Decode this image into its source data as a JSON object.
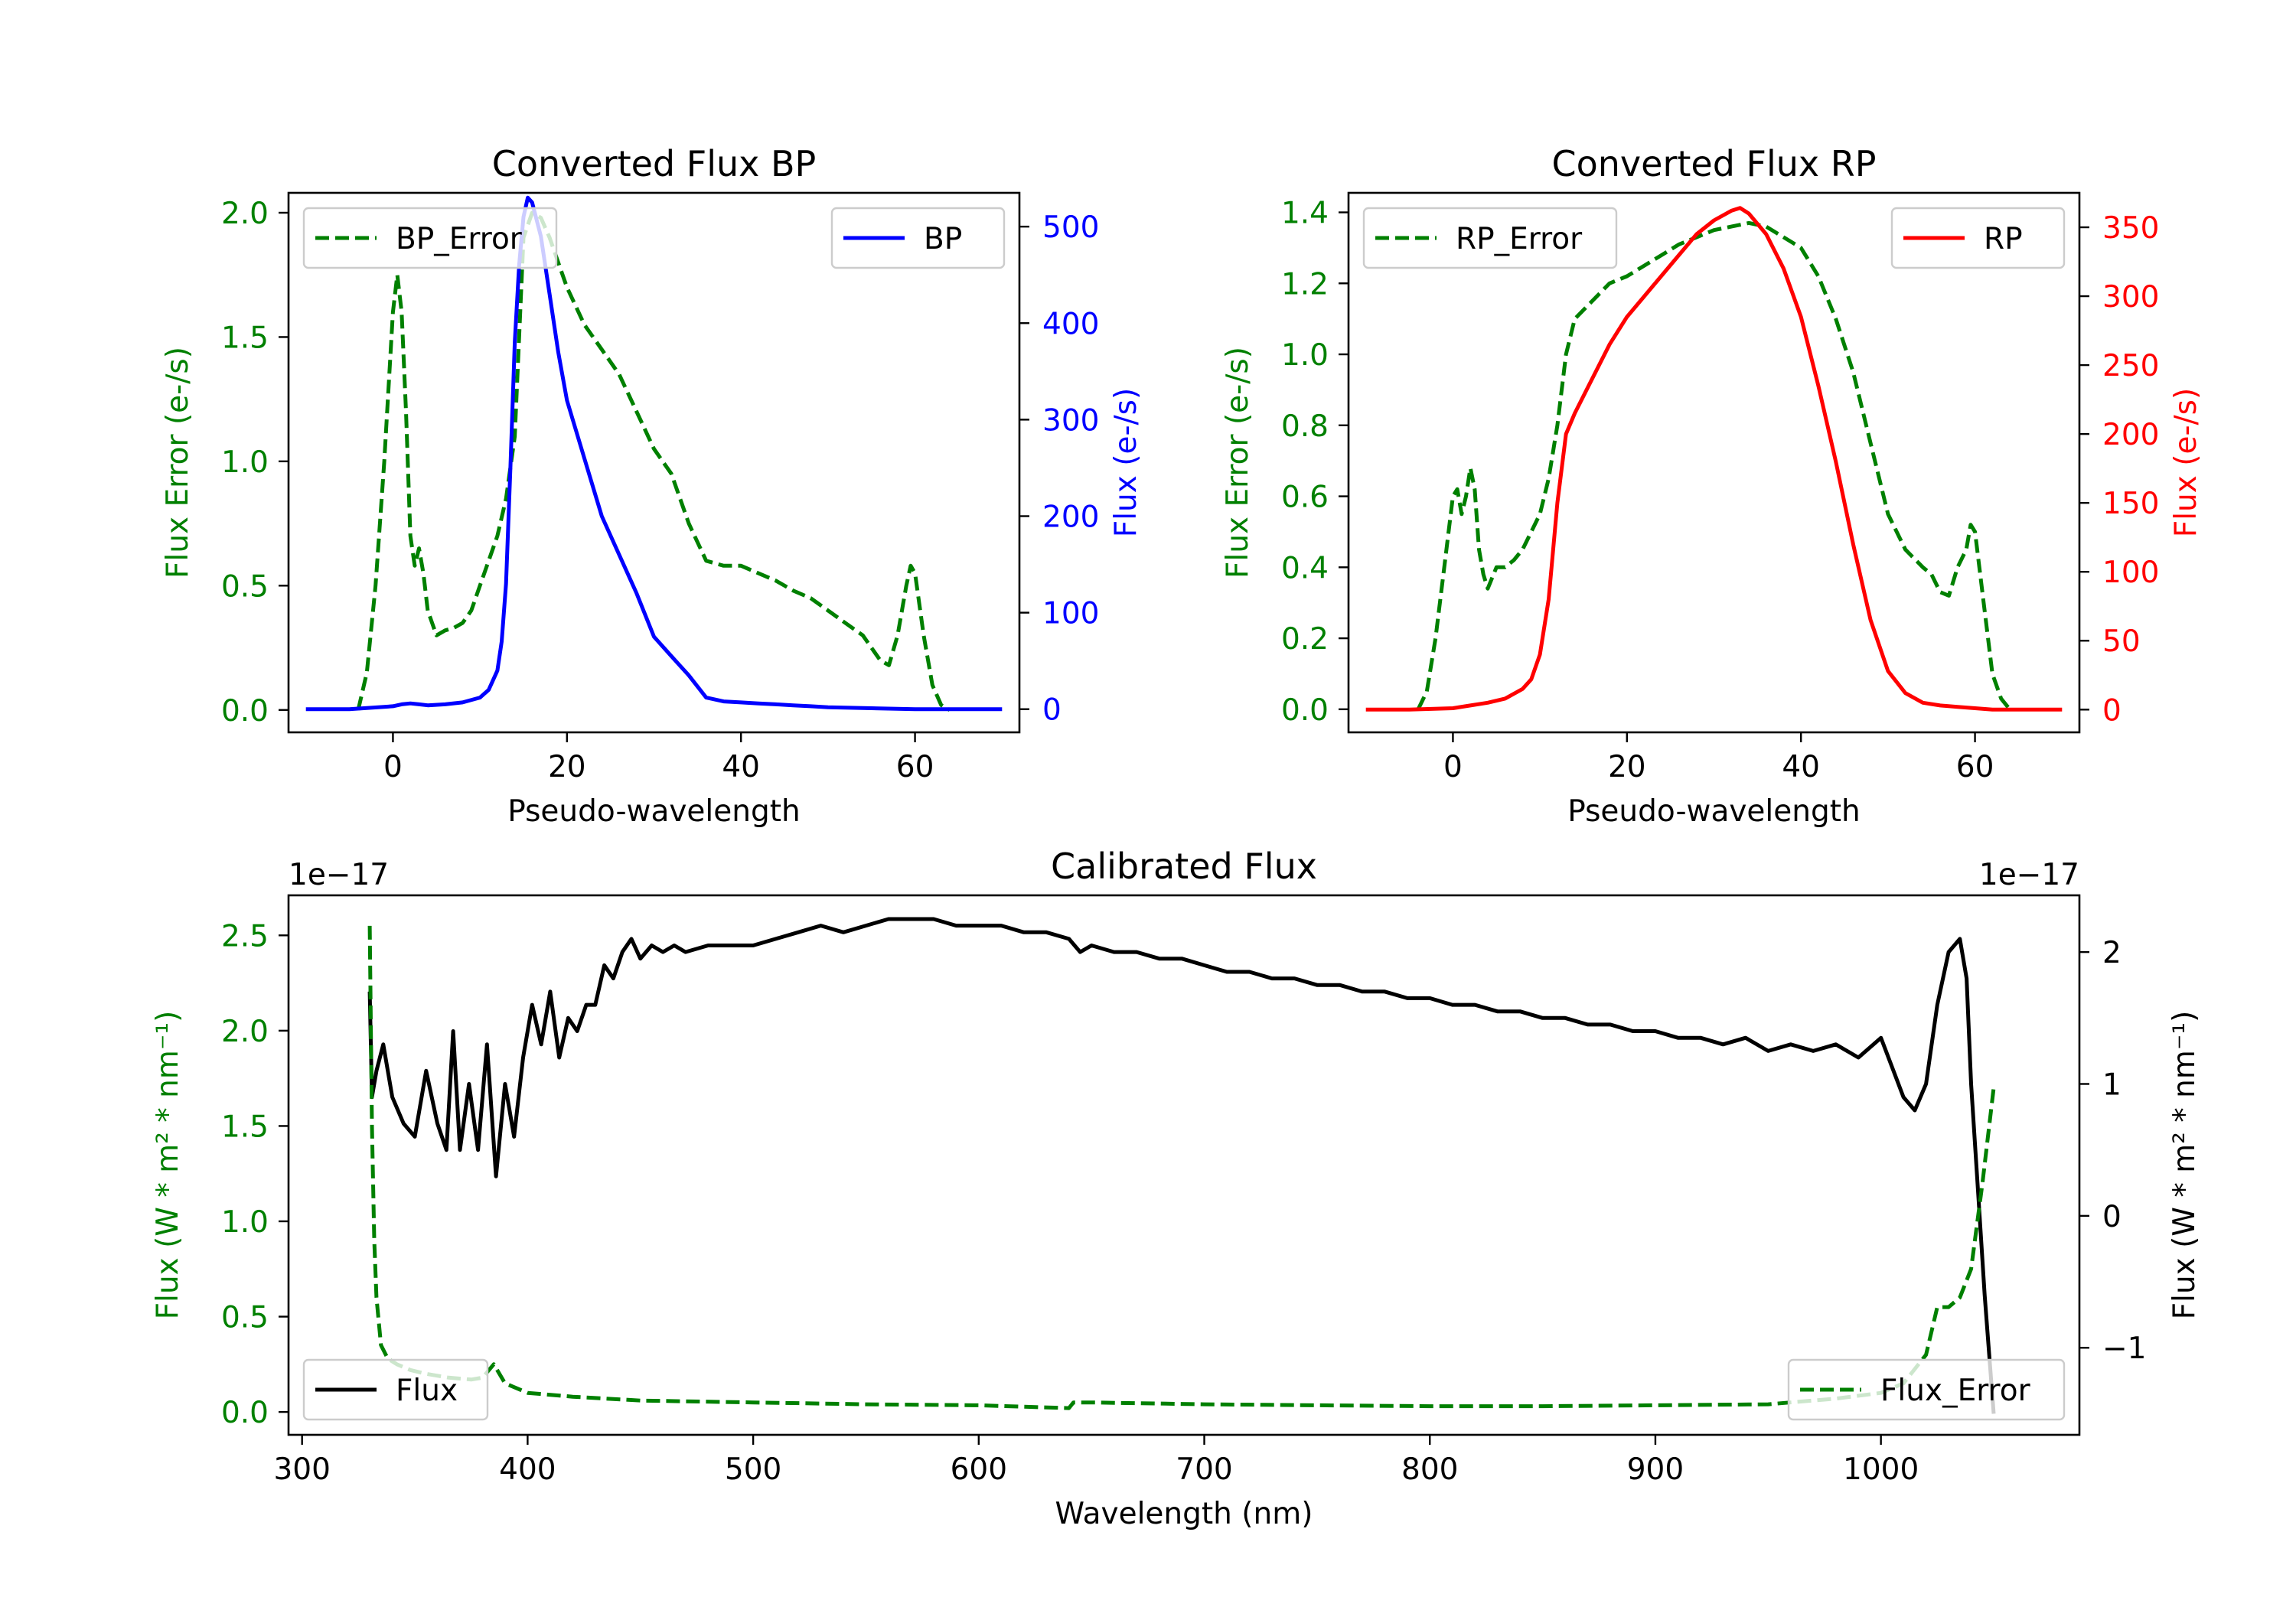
{
  "colors": {
    "bp": "#0000ff",
    "rp": "#ff0000",
    "error": "#008000",
    "flux": "#000000",
    "axis": "#000000"
  },
  "chart_data": [
    {
      "id": "bp",
      "type": "line",
      "title": "Converted Flux BP",
      "xlabel": "Pseudo-wavelength",
      "xlim": [
        -12,
        72
      ],
      "xticks": [
        0,
        20,
        40,
        60
      ],
      "left_axis": {
        "label": "Flux Error (e-/s)",
        "color": "#008000",
        "ylim": [
          -0.09,
          2.08
        ],
        "ticks": [
          0.0,
          0.5,
          1.0,
          1.5,
          2.0
        ],
        "tick_labels": [
          "0.0",
          "0.5",
          "1.0",
          "1.5",
          "2.0"
        ]
      },
      "right_axis": {
        "label": "Flux (e-/s)",
        "color": "#0000ff",
        "ylim": [
          -24,
          535
        ],
        "ticks": [
          0,
          100,
          200,
          300,
          400,
          500
        ],
        "tick_labels": [
          "0",
          "100",
          "200",
          "300",
          "400",
          "500"
        ]
      },
      "series": [
        {
          "name": "BP_Error",
          "axis": "left",
          "style": "dashed",
          "color": "#008000",
          "x": [
            -4,
            -3,
            -2,
            -1,
            0,
            0.5,
            1,
            1.5,
            2,
            2.5,
            3,
            3.5,
            4,
            5,
            6,
            7,
            8,
            9,
            10,
            11,
            12,
            13,
            14,
            15,
            16,
            17,
            18,
            19,
            20,
            22,
            24,
            26,
            28,
            30,
            32,
            34,
            36,
            38,
            40,
            42,
            44,
            46,
            48,
            50,
            52,
            54,
            55,
            56,
            57,
            58,
            59,
            59.5,
            60,
            61,
            62,
            63,
            64
          ],
          "y": [
            0.0,
            0.15,
            0.5,
            1.0,
            1.6,
            1.75,
            1.6,
            1.2,
            0.7,
            0.58,
            0.65,
            0.55,
            0.4,
            0.3,
            0.32,
            0.33,
            0.35,
            0.4,
            0.5,
            0.6,
            0.7,
            0.85,
            1.1,
            1.9,
            2.0,
            1.98,
            1.9,
            1.8,
            1.7,
            1.55,
            1.45,
            1.35,
            1.2,
            1.05,
            0.95,
            0.75,
            0.6,
            0.58,
            0.58,
            0.55,
            0.52,
            0.48,
            0.45,
            0.4,
            0.35,
            0.3,
            0.25,
            0.2,
            0.18,
            0.3,
            0.5,
            0.58,
            0.55,
            0.3,
            0.1,
            0.02,
            0.0
          ]
        },
        {
          "name": "BP",
          "axis": "right",
          "style": "solid",
          "color": "#0000ff",
          "x": [
            -10,
            -5,
            0,
            1,
            2,
            3,
            4,
            6,
            8,
            10,
            11,
            12,
            12.5,
            13,
            13.5,
            14,
            14.5,
            15,
            15.5,
            16,
            17,
            18,
            19,
            20,
            22,
            24,
            26,
            28,
            30,
            32,
            34,
            36,
            38,
            40,
            42,
            44,
            46,
            48,
            50,
            55,
            60,
            65,
            70
          ],
          "y": [
            0,
            0,
            3,
            5,
            6,
            5,
            4,
            5,
            7,
            12,
            20,
            40,
            70,
            130,
            250,
            380,
            460,
            510,
            530,
            525,
            490,
            430,
            370,
            320,
            260,
            200,
            160,
            120,
            75,
            55,
            35,
            12,
            8,
            7,
            6,
            5,
            4,
            3,
            2,
            1,
            0,
            0,
            0
          ]
        }
      ],
      "legend": [
        {
          "label": "BP_Error",
          "position": "top-left"
        },
        {
          "label": "BP",
          "position": "top-right"
        }
      ]
    },
    {
      "id": "rp",
      "type": "line",
      "title": "Converted Flux RP",
      "xlabel": "Pseudo-wavelength",
      "xlim": [
        -12,
        72
      ],
      "xticks": [
        0,
        20,
        40,
        60
      ],
      "left_axis": {
        "label": "Flux Error (e-/s)",
        "color": "#008000",
        "ylim": [
          -0.065,
          1.455
        ],
        "ticks": [
          0.0,
          0.2,
          0.4,
          0.6,
          0.8,
          1.0,
          1.2,
          1.4
        ],
        "tick_labels": [
          "0.0",
          "0.2",
          "0.4",
          "0.6",
          "0.8",
          "1.0",
          "1.2",
          "1.4"
        ]
      },
      "right_axis": {
        "label": "Flux (e-/s)",
        "color": "#ff0000",
        "ylim": [
          -16.5,
          375
        ],
        "ticks": [
          0,
          50,
          100,
          150,
          200,
          250,
          300,
          350
        ],
        "tick_labels": [
          "0",
          "50",
          "100",
          "150",
          "200",
          "250",
          "300",
          "350"
        ]
      },
      "series": [
        {
          "name": "RP_Error",
          "axis": "left",
          "style": "dashed",
          "color": "#008000",
          "x": [
            -4,
            -3,
            -2,
            -1,
            0,
            0.5,
            1,
            1.5,
            2,
            2.5,
            3,
            3.5,
            4,
            5,
            6,
            7,
            8,
            9,
            10,
            11,
            12,
            13,
            14,
            16,
            18,
            20,
            22,
            24,
            26,
            28,
            30,
            32,
            34,
            36,
            38,
            40,
            42,
            44,
            46,
            48,
            50,
            52,
            54,
            55,
            56,
            57,
            58,
            59,
            59.5,
            60,
            61,
            62,
            63,
            64
          ],
          "y": [
            0.0,
            0.05,
            0.2,
            0.4,
            0.6,
            0.62,
            0.55,
            0.6,
            0.68,
            0.62,
            0.45,
            0.38,
            0.34,
            0.4,
            0.4,
            0.42,
            0.45,
            0.5,
            0.55,
            0.65,
            0.8,
            1.0,
            1.1,
            1.15,
            1.2,
            1.22,
            1.25,
            1.28,
            1.31,
            1.33,
            1.35,
            1.36,
            1.37,
            1.36,
            1.33,
            1.3,
            1.22,
            1.1,
            0.95,
            0.75,
            0.55,
            0.45,
            0.4,
            0.38,
            0.33,
            0.32,
            0.4,
            0.45,
            0.52,
            0.5,
            0.3,
            0.1,
            0.03,
            0.0
          ]
        },
        {
          "name": "RP",
          "axis": "right",
          "style": "solid",
          "color": "#ff0000",
          "x": [
            -10,
            -5,
            0,
            2,
            4,
            6,
            8,
            9,
            10,
            11,
            12,
            13,
            14,
            16,
            18,
            20,
            22,
            24,
            26,
            28,
            30,
            32,
            33,
            34,
            36,
            38,
            40,
            42,
            44,
            46,
            48,
            50,
            52,
            54,
            56,
            58,
            60,
            62,
            65,
            70
          ],
          "y": [
            0,
            0,
            1,
            3,
            5,
            8,
            15,
            22,
            40,
            80,
            150,
            200,
            215,
            240,
            265,
            285,
            300,
            315,
            330,
            345,
            355,
            362,
            364,
            360,
            345,
            320,
            285,
            235,
            180,
            120,
            65,
            28,
            12,
            5,
            3,
            2,
            1,
            0,
            0,
            0
          ]
        }
      ],
      "legend": [
        {
          "label": "RP_Error",
          "position": "top-left"
        },
        {
          "label": "RP",
          "position": "top-right"
        }
      ]
    },
    {
      "id": "cal",
      "type": "line",
      "title": "Calibrated Flux",
      "xlabel": "Wavelength (nm)",
      "xlim": [
        294,
        1088
      ],
      "xticks": [
        300,
        400,
        500,
        600,
        700,
        800,
        900,
        1000
      ],
      "left_axis": {
        "label": "Flux (W * m² * nm⁻¹)",
        "color": "#008000",
        "offset_text": "1e−17",
        "ylim": [
          -0.12,
          2.71
        ],
        "ticks": [
          0.0,
          0.5,
          1.0,
          1.5,
          2.0,
          2.5
        ],
        "tick_labels": [
          "0.0",
          "0.5",
          "1.0",
          "1.5",
          "2.0",
          "2.5"
        ]
      },
      "right_axis": {
        "label": "Flux (W * m² * nm⁻¹)",
        "color": "#000000",
        "offset_text": "1e−17",
        "ylim": [
          -1.66,
          2.43
        ],
        "ticks": [
          -1,
          0,
          1,
          2
        ],
        "tick_labels": [
          "−1",
          "0",
          "1",
          "2"
        ]
      },
      "series": [
        {
          "name": "Flux",
          "axis": "right",
          "style": "solid",
          "color": "#000000",
          "x": [
            330,
            331,
            333,
            336,
            340,
            345,
            350,
            355,
            360,
            364,
            367,
            370,
            374,
            378,
            382,
            386,
            390,
            394,
            398,
            402,
            406,
            410,
            414,
            418,
            422,
            426,
            430,
            434,
            438,
            442,
            446,
            450,
            455,
            460,
            465,
            470,
            480,
            490,
            500,
            510,
            520,
            530,
            540,
            550,
            560,
            570,
            580,
            590,
            600,
            610,
            620,
            630,
            640,
            645,
            650,
            660,
            670,
            680,
            690,
            700,
            710,
            720,
            730,
            740,
            750,
            760,
            770,
            780,
            790,
            800,
            810,
            820,
            830,
            840,
            850,
            860,
            870,
            880,
            890,
            900,
            910,
            920,
            930,
            940,
            950,
            960,
            970,
            980,
            990,
            1000,
            1010,
            1015,
            1020,
            1025,
            1030,
            1035,
            1038,
            1040,
            1043,
            1046,
            1050
          ],
          "y": [
            1.7,
            0.9,
            1.1,
            1.3,
            0.9,
            0.7,
            0.6,
            1.1,
            0.7,
            0.5,
            1.4,
            0.5,
            1.0,
            0.5,
            1.3,
            0.3,
            1.0,
            0.6,
            1.2,
            1.6,
            1.3,
            1.7,
            1.2,
            1.5,
            1.4,
            1.6,
            1.6,
            1.9,
            1.8,
            2.0,
            2.1,
            1.95,
            2.05,
            2.0,
            2.05,
            2.0,
            2.05,
            2.05,
            2.05,
            2.1,
            2.15,
            2.2,
            2.15,
            2.2,
            2.25,
            2.25,
            2.25,
            2.2,
            2.2,
            2.2,
            2.15,
            2.15,
            2.1,
            2.0,
            2.05,
            2.0,
            2.0,
            1.95,
            1.95,
            1.9,
            1.85,
            1.85,
            1.8,
            1.8,
            1.75,
            1.75,
            1.7,
            1.7,
            1.65,
            1.65,
            1.6,
            1.6,
            1.55,
            1.55,
            1.5,
            1.5,
            1.45,
            1.45,
            1.4,
            1.4,
            1.35,
            1.35,
            1.3,
            1.35,
            1.25,
            1.3,
            1.25,
            1.3,
            1.2,
            1.35,
            0.9,
            0.8,
            1.0,
            1.6,
            2.0,
            2.1,
            1.8,
            1.0,
            0.2,
            -0.6,
            -1.5
          ]
        },
        {
          "name": "Flux_Error",
          "axis": "left",
          "style": "dashed",
          "color": "#008000",
          "x": [
            330,
            331,
            332,
            333,
            335,
            338,
            342,
            348,
            355,
            365,
            375,
            380,
            385,
            390,
            400,
            420,
            450,
            500,
            550,
            600,
            640,
            642,
            650,
            700,
            750,
            800,
            850,
            900,
            950,
            980,
            1000,
            1010,
            1020,
            1025,
            1030,
            1035,
            1040,
            1045,
            1050
          ],
          "y": [
            2.55,
            1.5,
            0.9,
            0.6,
            0.35,
            0.28,
            0.25,
            0.22,
            0.2,
            0.18,
            0.17,
            0.18,
            0.25,
            0.15,
            0.1,
            0.08,
            0.06,
            0.05,
            0.04,
            0.035,
            0.02,
            0.05,
            0.05,
            0.04,
            0.035,
            0.03,
            0.03,
            0.035,
            0.04,
            0.07,
            0.1,
            0.15,
            0.3,
            0.55,
            0.55,
            0.6,
            0.75,
            1.2,
            1.7
          ]
        }
      ],
      "legend": [
        {
          "label": "Flux",
          "position": "bottom-left"
        },
        {
          "label": "Flux_Error",
          "position": "bottom-right"
        }
      ]
    }
  ]
}
